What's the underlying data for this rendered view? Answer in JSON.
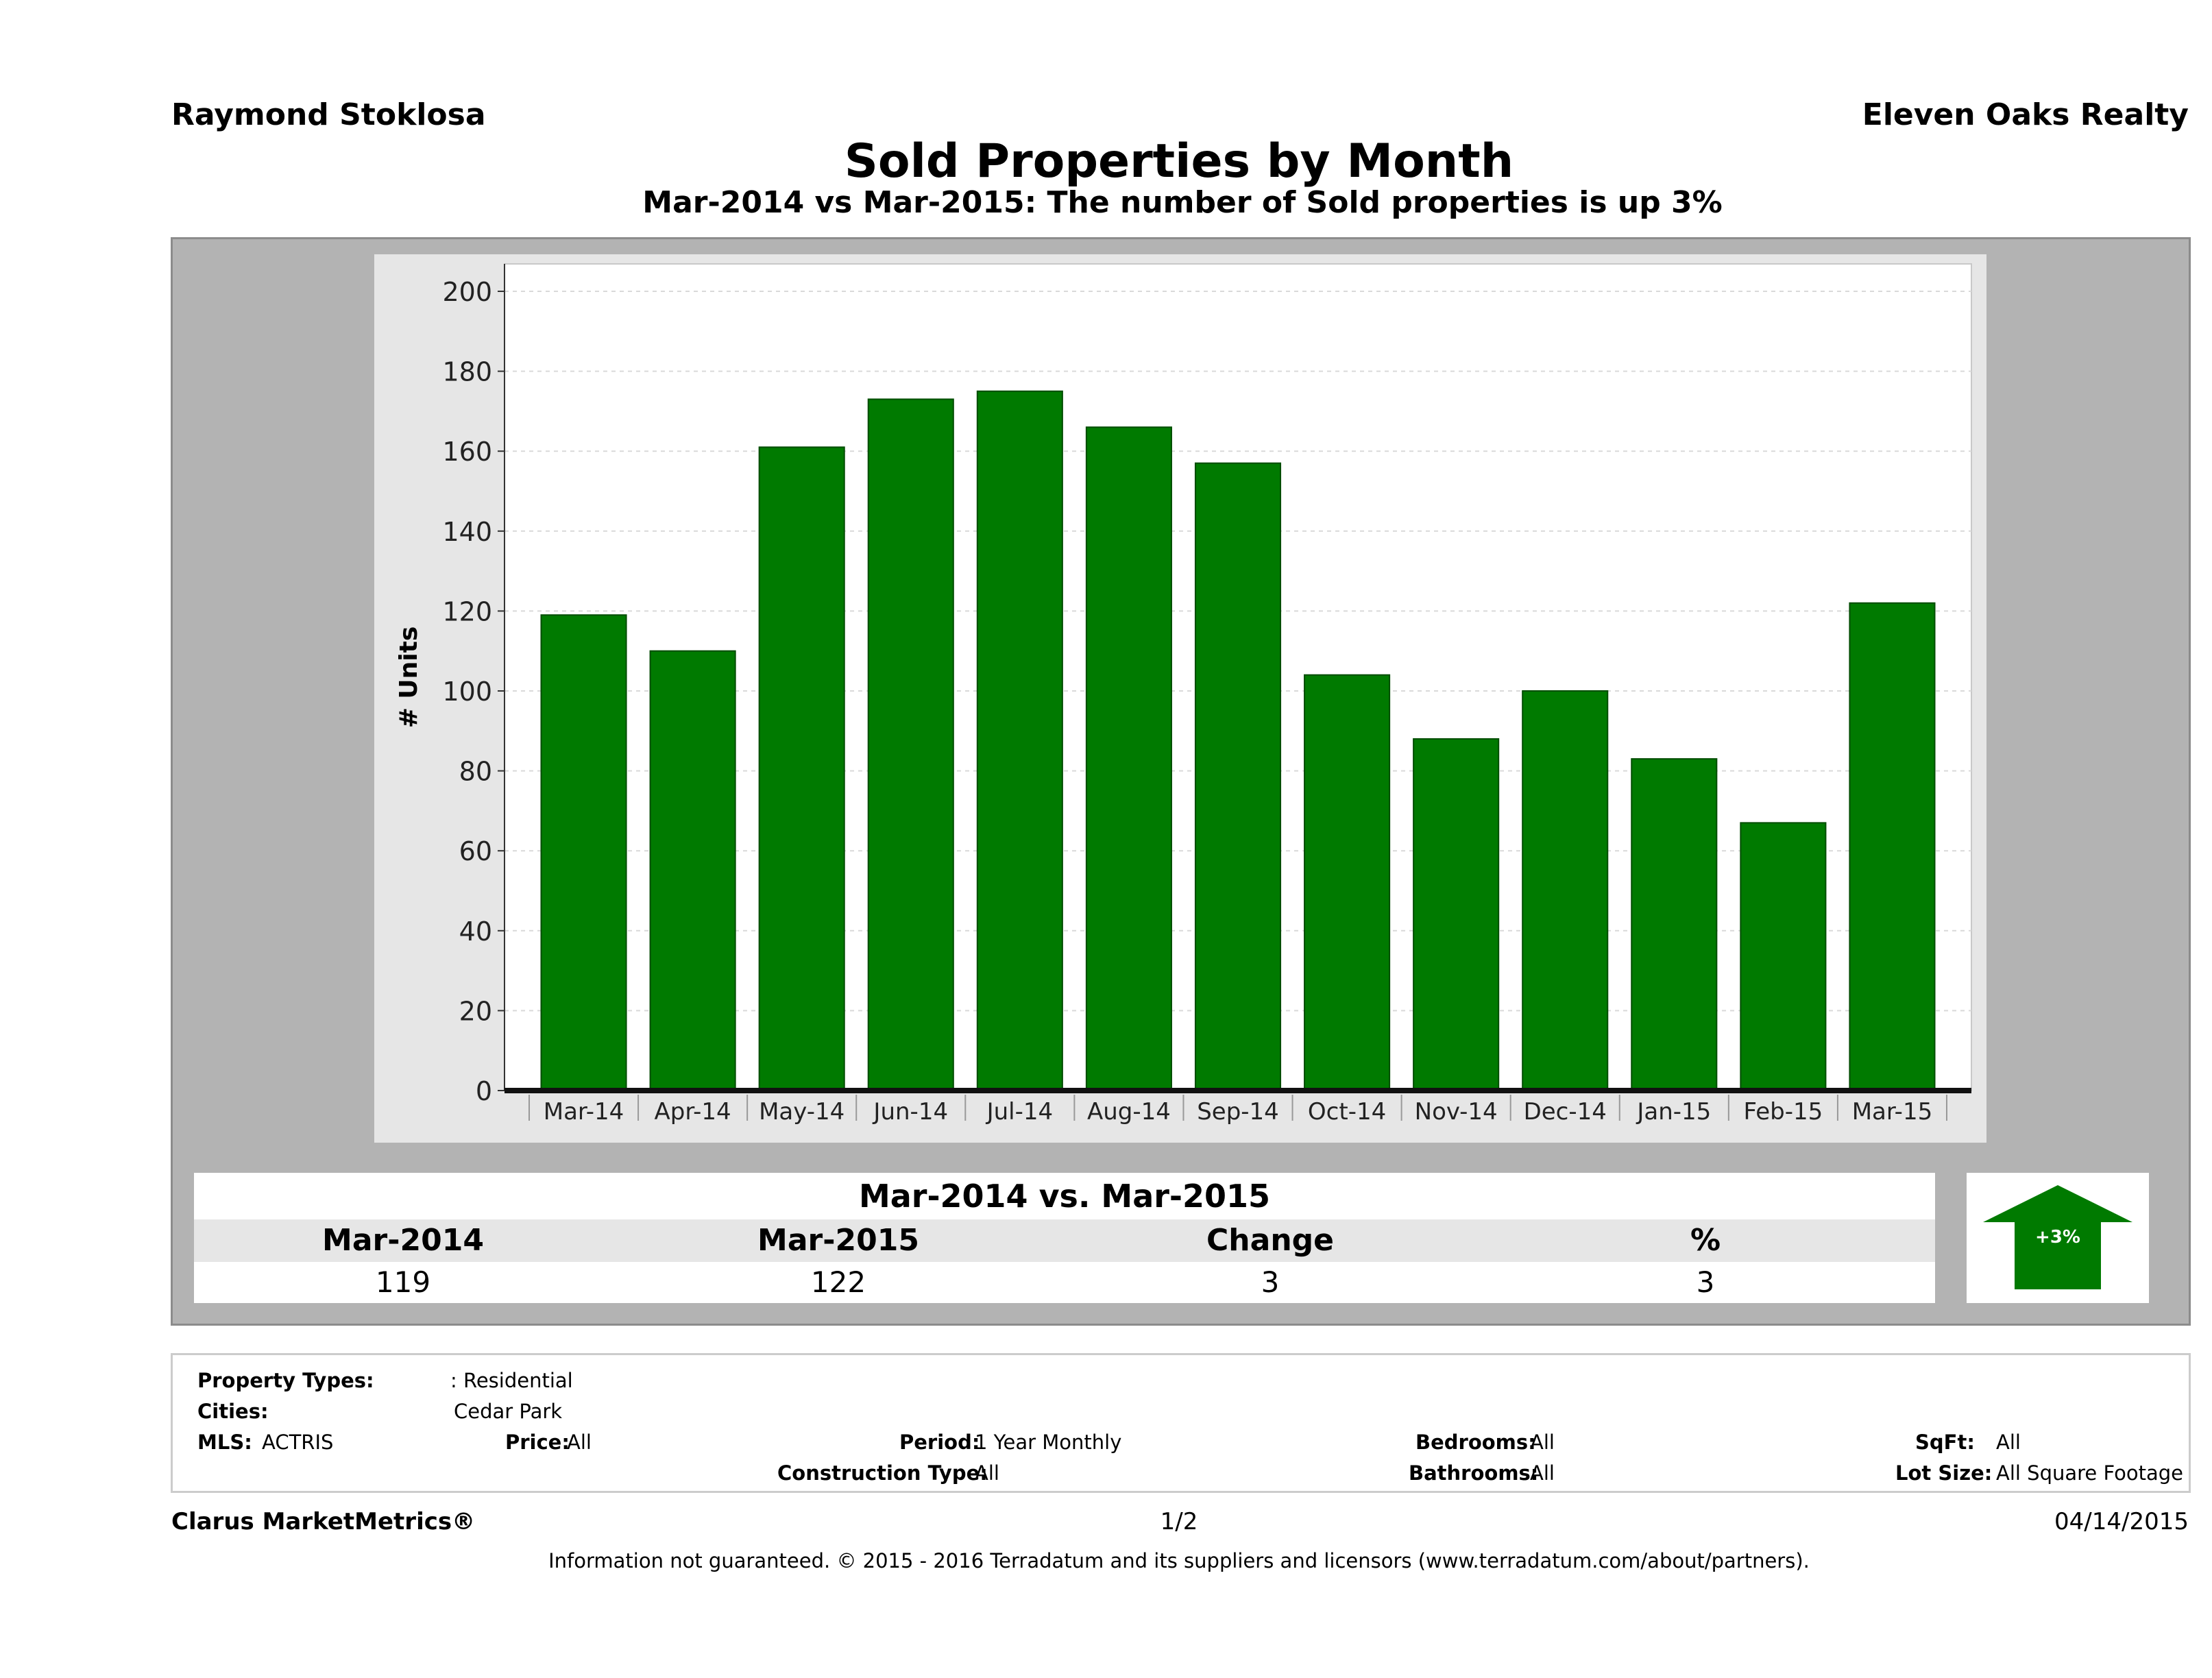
{
  "header": {
    "agent": "Raymond Stoklosa",
    "brokerage": "Eleven Oaks Realty",
    "title": "Sold Properties by Month",
    "subtitle": "Mar-2014 vs Mar-2015: The number of Sold  properties is up 3%"
  },
  "chart_data": {
    "type": "bar",
    "title": "",
    "xlabel": "",
    "ylabel": "# Units",
    "categories": [
      "Mar-14",
      "Apr-14",
      "May-14",
      "Jun-14",
      "Jul-14",
      "Aug-14",
      "Sep-14",
      "Oct-14",
      "Nov-14",
      "Dec-14",
      "Jan-15",
      "Feb-15",
      "Mar-15"
    ],
    "values": [
      119,
      110,
      161,
      173,
      175,
      166,
      157,
      104,
      88,
      100,
      83,
      67,
      122
    ],
    "ylim": [
      0,
      200
    ],
    "yticks": [
      0,
      20,
      40,
      60,
      80,
      100,
      120,
      140,
      160,
      180,
      200
    ],
    "grid": true,
    "bar_color": "#007a00"
  },
  "summary": {
    "title": "Mar-2014 vs. Mar-2015",
    "headers": [
      "Mar-2014",
      "Mar-2015",
      "Change",
      "%"
    ],
    "values": [
      "119",
      "122",
      "3",
      "3"
    ],
    "indicator_label": "+3%",
    "indicator_direction": "up",
    "indicator_color": "#007a00"
  },
  "filters": {
    "property_types_label": "Property Types:",
    "property_types_value": ": Residential",
    "cities_label": "Cities:",
    "cities_value": "Cedar Park",
    "mls_label": "MLS:",
    "mls_value": "ACTRIS",
    "price_label": "Price:",
    "price_value": "All",
    "period_label": "Period:",
    "period_value": "1 Year Monthly",
    "construction_label": "Construction Type:",
    "construction_value": "All",
    "bedrooms_label": "Bedrooms:",
    "bedrooms_value": "All",
    "bathrooms_label": "Bathrooms:",
    "bathrooms_value": "All",
    "sqft_label": "SqFt:",
    "sqft_value": "All",
    "lotsize_label": "Lot Size:",
    "lotsize_value": "All Square Footage"
  },
  "footer": {
    "brand": "Clarus MarketMetrics®",
    "page": "1/2",
    "date": "04/14/2015",
    "disclaimer": "Information not guaranteed. © 2015 - 2016 Terradatum and its suppliers and licensors (www.terradatum.com/about/partners)."
  }
}
